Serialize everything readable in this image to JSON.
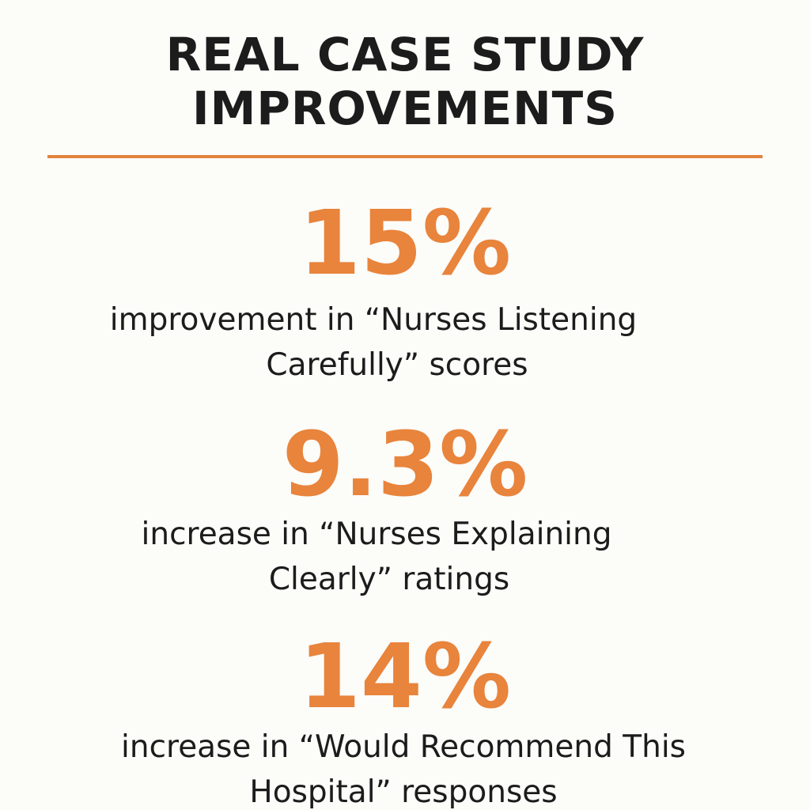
{
  "header": {
    "title_line1": "REAL CASE STUDY",
    "title_line2": "IMPROVEMENTS"
  },
  "colors": {
    "accent": "#e8843c",
    "text": "#1c1c1c",
    "background": "#fcfcf9"
  },
  "stats": [
    {
      "value": "15%",
      "line1": "improvement in “Nurses Listening",
      "line2": "Carefully” scores"
    },
    {
      "value": "9.3%",
      "line1": "increase in “Nurses Explaining",
      "line2": "Clearly” ratings"
    },
    {
      "value": "14%",
      "line1": "increase in “Would Recommend This",
      "line2": "Hospital” responses"
    }
  ]
}
